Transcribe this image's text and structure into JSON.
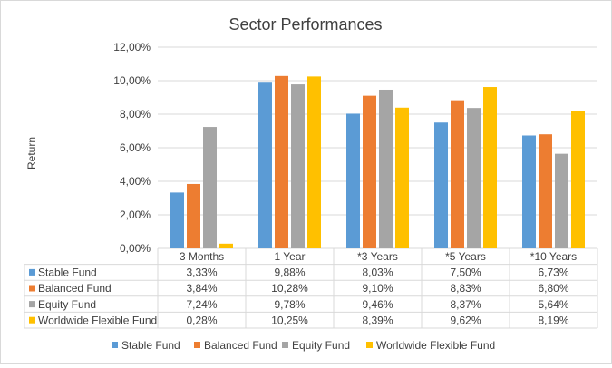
{
  "chart_data": {
    "type": "bar",
    "title": "Sector Performances",
    "ylabel": "Return",
    "xlabel": "",
    "ylim": [
      0,
      12
    ],
    "y_tick_labels": [
      "0,00%",
      "2,00%",
      "4,00%",
      "6,00%",
      "8,00%",
      "10,00%",
      "12,00%"
    ],
    "categories": [
      "3 Months",
      "1 Year",
      "*3 Years",
      "*5 Years",
      "*10 Years"
    ],
    "series": [
      {
        "name": "Stable Fund",
        "color": "#5b9bd5",
        "values": [
          3.33,
          9.88,
          8.03,
          7.5,
          6.73
        ],
        "labels": [
          "3,33%",
          "9,88%",
          "8,03%",
          "7,50%",
          "6,73%"
        ]
      },
      {
        "name": "Balanced Fund",
        "color": "#ed7d31",
        "values": [
          3.84,
          10.28,
          9.1,
          8.83,
          6.8
        ],
        "labels": [
          "3,84%",
          "10,28%",
          "9,10%",
          "8,83%",
          "6,80%"
        ]
      },
      {
        "name": "Equity Fund",
        "color": "#a5a5a5",
        "values": [
          7.24,
          9.78,
          9.46,
          8.37,
          5.64
        ],
        "labels": [
          "7,24%",
          "9,78%",
          "9,46%",
          "8,37%",
          "5,64%"
        ]
      },
      {
        "name": "Worldwide Flexible Fund",
        "color": "#ffc000",
        "values": [
          0.28,
          10.25,
          8.39,
          9.62,
          8.19
        ],
        "labels": [
          "0,28%",
          "10,25%",
          "8,39%",
          "9,62%",
          "8,19%"
        ]
      }
    ],
    "grid": true,
    "legend_position": "bottom",
    "data_table": true
  }
}
